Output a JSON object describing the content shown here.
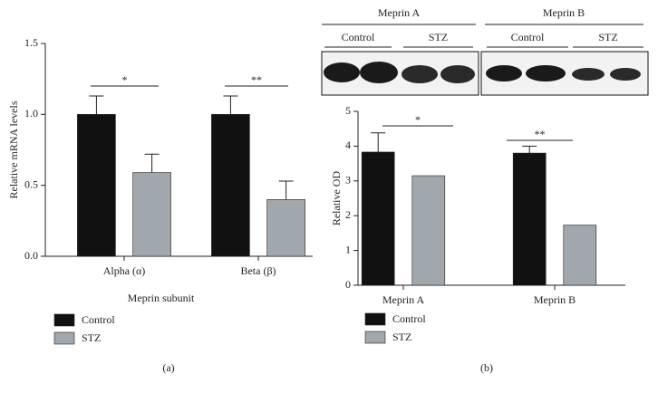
{
  "chart_data": [
    {
      "type": "bar",
      "caption": "(a)",
      "x_label": "Meprin subunit",
      "y_label": "Relative mRNA levels",
      "categories": [
        "Alpha (α)",
        "Beta (β)"
      ],
      "series": [
        {
          "name": "Control",
          "color": "#111111",
          "values": [
            1.0,
            1.0
          ],
          "errors": [
            0.13,
            0.13
          ]
        },
        {
          "name": "STZ",
          "color": "#a0a8ae",
          "values": [
            0.59,
            0.4
          ],
          "errors": [
            0.13,
            0.13
          ]
        }
      ],
      "ylim": [
        0,
        1.5
      ],
      "yticks": [
        {
          "value": 0,
          "label": "0.0"
        },
        {
          "value": 0.5,
          "label": "0.5"
        },
        {
          "value": 1.0,
          "label": "1.0"
        },
        {
          "value": 1.5,
          "label": "1.5"
        }
      ],
      "annotations": [
        "*",
        "**"
      ]
    },
    {
      "type": "bar",
      "caption": "(b)",
      "y_label": "Relative OD",
      "categories": [
        "Meprin A",
        "Meprin B"
      ],
      "series": [
        {
          "name": "Control",
          "color": "#111111",
          "values": [
            3.83,
            3.8
          ],
          "errors": [
            0.55,
            0.2
          ]
        },
        {
          "name": "STZ",
          "color": "#a0a8ae",
          "values": [
            3.15,
            1.73
          ],
          "errors": [
            null,
            null
          ]
        }
      ],
      "ylim": [
        0,
        5
      ],
      "yticks": [
        0,
        1,
        2,
        3,
        4,
        5
      ],
      "annotations": [
        "*",
        "**"
      ],
      "blot": {
        "groups": [
          "Meprin A",
          "Meprin B"
        ],
        "lanes": [
          "Control",
          "STZ",
          "Control",
          "STZ"
        ]
      }
    }
  ]
}
